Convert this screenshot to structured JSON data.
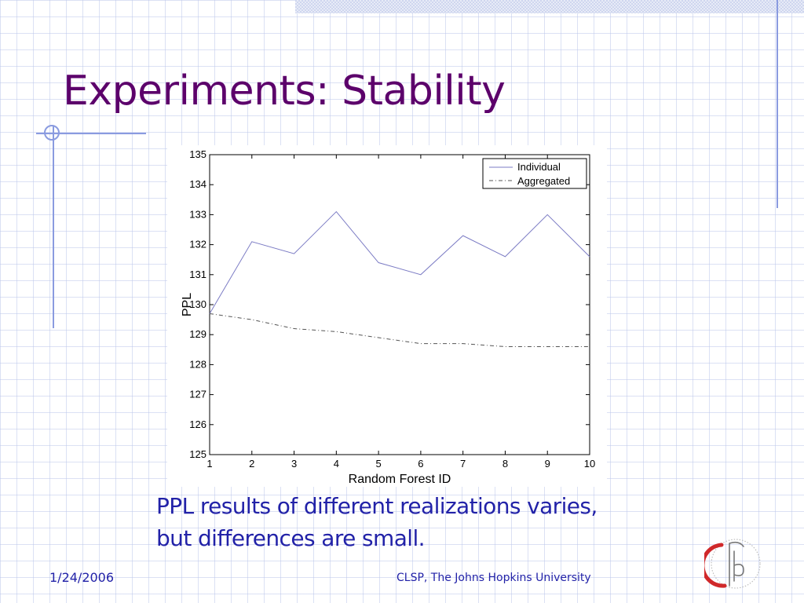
{
  "slide": {
    "title": "Experiments: Stability",
    "caption_lines": [
      "PPL results of different realizations varies,",
      "but differences are small."
    ],
    "footer_date": "1/24/2006",
    "footer_org": "CLSP, The Johns Hopkins University"
  },
  "theme": {
    "title_color": "#5c006b",
    "text_color": "#2222a8",
    "accent_line_color": "#8a9be0",
    "logo_red": "#d0282a"
  },
  "chart_data": {
    "type": "line",
    "title": "",
    "xlabel": "Random Forest ID",
    "ylabel": "PPL",
    "x": [
      1,
      2,
      3,
      4,
      5,
      6,
      7,
      8,
      9,
      10
    ],
    "xlim": [
      1,
      10
    ],
    "ylim": [
      125,
      135
    ],
    "xticks": [
      "1",
      "2",
      "3",
      "4",
      "5",
      "6",
      "7",
      "8",
      "9",
      "10"
    ],
    "yticks": [
      "125",
      "126",
      "127",
      "128",
      "129",
      "130",
      "131",
      "132",
      "133",
      "134",
      "135"
    ],
    "grid": false,
    "legend_position": "top-right",
    "series": [
      {
        "name": "Individual",
        "style": "solid",
        "color": "#7b7bc4",
        "values": [
          129.7,
          132.1,
          131.7,
          133.1,
          131.4,
          131.0,
          132.3,
          131.6,
          133.0,
          131.6
        ]
      },
      {
        "name": "Aggregated",
        "style": "dash-dot",
        "color": "#555555",
        "values": [
          129.7,
          129.5,
          129.2,
          129.1,
          128.9,
          128.7,
          128.7,
          128.6,
          128.6,
          128.6
        ]
      }
    ]
  }
}
